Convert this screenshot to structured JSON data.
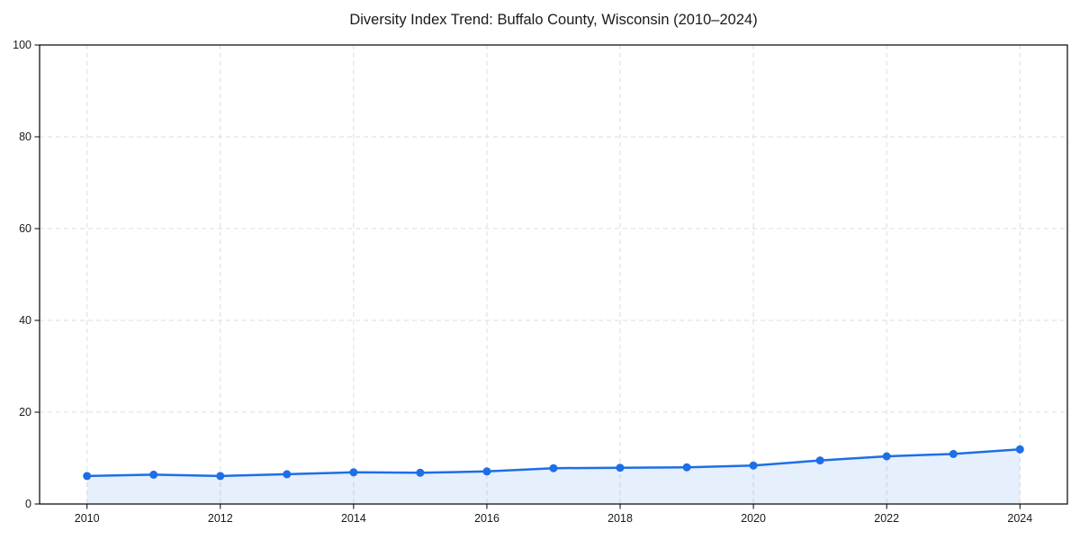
{
  "chart_data": {
    "type": "line",
    "title": "Diversity Index Trend: Buffalo County, Wisconsin (2010–2024)",
    "x": [
      2010,
      2011,
      2012,
      2013,
      2014,
      2015,
      2016,
      2017,
      2018,
      2019,
      2020,
      2021,
      2022,
      2023,
      2024
    ],
    "values": [
      6.1,
      6.4,
      6.1,
      6.5,
      6.9,
      6.8,
      7.1,
      7.8,
      7.9,
      8.0,
      8.4,
      9.5,
      10.4,
      10.9,
      11.9
    ],
    "xticks": [
      2010,
      2012,
      2014,
      2016,
      2018,
      2020,
      2022,
      2024
    ],
    "yticks": [
      0,
      20,
      40,
      60,
      80,
      100
    ],
    "ylim": [
      0,
      100
    ],
    "xlabel": "",
    "ylabel": "",
    "legend": "none",
    "grid": "dashed-both-directions",
    "marker": "circle",
    "area_under_line": true,
    "colors": {
      "line": "#1e6ee6",
      "marker": "#1e6ee6",
      "area": "rgba(30,110,230,0.11)",
      "grid": "#dddddd",
      "spine": "#000000",
      "text": "#1a1a1a",
      "background": "#ffffff"
    }
  }
}
